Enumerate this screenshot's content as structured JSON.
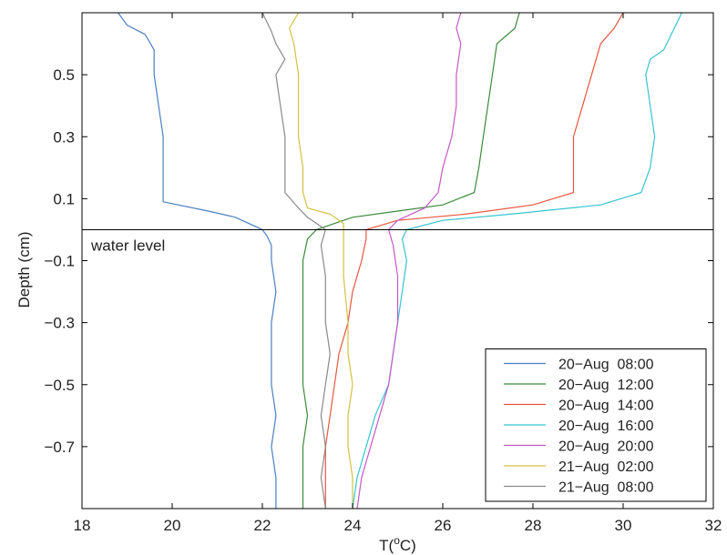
{
  "chart_data": {
    "type": "line",
    "xlabel_main": "T(",
    "xlabel_sup": "o",
    "xlabel_end": "C)",
    "ylabel": "Depth (cm)",
    "xlim": [
      18,
      32
    ],
    "ylim": [
      -0.9,
      0.7
    ],
    "xticks": [
      18,
      20,
      22,
      24,
      26,
      28,
      30,
      32
    ],
    "yticks": [
      0.5,
      0.3,
      0.1,
      -0.1,
      -0.3,
      -0.5,
      -0.7
    ],
    "ytick_labels": [
      "0.5",
      "0.3",
      "0.1",
      "−0.1",
      "−0.3",
      "−0.5",
      "−0.7"
    ],
    "xtick_labels": [
      "18",
      "20",
      "22",
      "24",
      "26",
      "28",
      "30",
      "32"
    ],
    "reference_line": {
      "y": 0,
      "label": "water level"
    },
    "legend": {
      "position": "bottom-right"
    },
    "series": [
      {
        "name": "20−Aug  08:00",
        "color": "#4a7fc1",
        "points": [
          [
            18.8,
            0.7
          ],
          [
            19.0,
            0.66
          ],
          [
            19.4,
            0.63
          ],
          [
            19.6,
            0.58
          ],
          [
            19.6,
            0.5
          ],
          [
            19.7,
            0.4
          ],
          [
            19.8,
            0.3
          ],
          [
            19.8,
            0.2
          ],
          [
            19.8,
            0.12
          ],
          [
            19.8,
            0.09
          ],
          [
            20.8,
            0.06
          ],
          [
            21.4,
            0.04
          ],
          [
            22.0,
            0.0
          ],
          [
            22.1,
            -0.02
          ],
          [
            22.2,
            -0.05
          ],
          [
            22.2,
            -0.1
          ],
          [
            22.3,
            -0.2
          ],
          [
            22.2,
            -0.3
          ],
          [
            22.2,
            -0.4
          ],
          [
            22.2,
            -0.5
          ],
          [
            22.3,
            -0.6
          ],
          [
            22.2,
            -0.7
          ],
          [
            22.3,
            -0.8
          ],
          [
            22.3,
            -0.9
          ]
        ]
      },
      {
        "name": "20−Aug  12:00",
        "color": "#3a8a3a",
        "points": [
          [
            27.7,
            0.7
          ],
          [
            27.6,
            0.65
          ],
          [
            27.2,
            0.6
          ],
          [
            27.1,
            0.5
          ],
          [
            27.0,
            0.4
          ],
          [
            26.9,
            0.3
          ],
          [
            26.8,
            0.2
          ],
          [
            26.7,
            0.12
          ],
          [
            26.0,
            0.08
          ],
          [
            25.0,
            0.06
          ],
          [
            24.0,
            0.04
          ],
          [
            23.2,
            0.0
          ],
          [
            23.0,
            -0.03
          ],
          [
            22.9,
            -0.1
          ],
          [
            22.9,
            -0.2
          ],
          [
            22.9,
            -0.3
          ],
          [
            22.9,
            -0.4
          ],
          [
            22.9,
            -0.5
          ],
          [
            23.0,
            -0.6
          ],
          [
            22.9,
            -0.7
          ],
          [
            22.9,
            -0.8
          ],
          [
            22.9,
            -0.9
          ]
        ]
      },
      {
        "name": "20−Aug  14:00",
        "color": "#e8553e",
        "points": [
          [
            30.0,
            0.7
          ],
          [
            29.8,
            0.65
          ],
          [
            29.5,
            0.6
          ],
          [
            29.3,
            0.5
          ],
          [
            29.1,
            0.4
          ],
          [
            28.9,
            0.3
          ],
          [
            28.9,
            0.2
          ],
          [
            28.9,
            0.12
          ],
          [
            28.0,
            0.08
          ],
          [
            26.5,
            0.05
          ],
          [
            25.0,
            0.03
          ],
          [
            24.3,
            0.0
          ],
          [
            24.3,
            -0.03
          ],
          [
            24.2,
            -0.1
          ],
          [
            24.0,
            -0.2
          ],
          [
            23.9,
            -0.3
          ],
          [
            23.7,
            -0.4
          ],
          [
            23.6,
            -0.5
          ],
          [
            23.5,
            -0.6
          ],
          [
            23.4,
            -0.7
          ],
          [
            23.4,
            -0.8
          ],
          [
            23.4,
            -0.9
          ]
        ]
      },
      {
        "name": "20−Aug  16:00",
        "color": "#35c4d0",
        "points": [
          [
            31.3,
            0.7
          ],
          [
            31.1,
            0.64
          ],
          [
            30.9,
            0.58
          ],
          [
            30.6,
            0.55
          ],
          [
            30.5,
            0.5
          ],
          [
            30.6,
            0.4
          ],
          [
            30.7,
            0.3
          ],
          [
            30.6,
            0.2
          ],
          [
            30.4,
            0.12
          ],
          [
            29.5,
            0.08
          ],
          [
            27.5,
            0.05
          ],
          [
            26.0,
            0.03
          ],
          [
            25.2,
            0.0
          ],
          [
            25.1,
            -0.03
          ],
          [
            25.2,
            -0.1
          ],
          [
            25.1,
            -0.2
          ],
          [
            25.0,
            -0.3
          ],
          [
            24.9,
            -0.4
          ],
          [
            24.8,
            -0.5
          ],
          [
            24.5,
            -0.6
          ],
          [
            24.3,
            -0.7
          ],
          [
            24.1,
            -0.8
          ],
          [
            24.0,
            -0.9
          ]
        ]
      },
      {
        "name": "20−Aug  20:00",
        "color": "#c458c8",
        "points": [
          [
            26.4,
            0.7
          ],
          [
            26.3,
            0.65
          ],
          [
            26.4,
            0.6
          ],
          [
            26.3,
            0.5
          ],
          [
            26.3,
            0.4
          ],
          [
            26.2,
            0.3
          ],
          [
            26.0,
            0.2
          ],
          [
            25.9,
            0.12
          ],
          [
            25.6,
            0.07
          ],
          [
            25.0,
            0.03
          ],
          [
            24.8,
            0.0
          ],
          [
            24.9,
            -0.05
          ],
          [
            25.0,
            -0.15
          ],
          [
            25.0,
            -0.3
          ],
          [
            24.9,
            -0.4
          ],
          [
            24.8,
            -0.5
          ],
          [
            24.6,
            -0.6
          ],
          [
            24.4,
            -0.7
          ],
          [
            24.2,
            -0.8
          ],
          [
            24.1,
            -0.9
          ]
        ]
      },
      {
        "name": "21−Aug  02:00",
        "color": "#d4c040",
        "points": [
          [
            22.8,
            0.7
          ],
          [
            22.6,
            0.65
          ],
          [
            22.7,
            0.6
          ],
          [
            22.8,
            0.5
          ],
          [
            22.8,
            0.4
          ],
          [
            22.8,
            0.3
          ],
          [
            22.9,
            0.2
          ],
          [
            22.9,
            0.12
          ],
          [
            23.0,
            0.07
          ],
          [
            23.5,
            0.05
          ],
          [
            23.8,
            0.02
          ],
          [
            23.8,
            0.0
          ],
          [
            23.8,
            -0.05
          ],
          [
            23.8,
            -0.15
          ],
          [
            23.9,
            -0.3
          ],
          [
            23.9,
            -0.4
          ],
          [
            24.0,
            -0.5
          ],
          [
            23.9,
            -0.6
          ],
          [
            23.9,
            -0.7
          ],
          [
            24.0,
            -0.8
          ],
          [
            24.0,
            -0.9
          ]
        ]
      },
      {
        "name": "21−Aug  08:00",
        "color": "#8a8a8a",
        "points": [
          [
            22.0,
            0.7
          ],
          [
            22.2,
            0.64
          ],
          [
            22.3,
            0.6
          ],
          [
            22.5,
            0.55
          ],
          [
            22.3,
            0.5
          ],
          [
            22.4,
            0.4
          ],
          [
            22.5,
            0.3
          ],
          [
            22.5,
            0.2
          ],
          [
            22.5,
            0.12
          ],
          [
            22.8,
            0.07
          ],
          [
            23.0,
            0.04
          ],
          [
            23.4,
            0.0
          ],
          [
            23.3,
            -0.05
          ],
          [
            23.4,
            -0.15
          ],
          [
            23.4,
            -0.3
          ],
          [
            23.5,
            -0.4
          ],
          [
            23.4,
            -0.5
          ],
          [
            23.3,
            -0.6
          ],
          [
            23.4,
            -0.7
          ],
          [
            23.3,
            -0.8
          ],
          [
            23.4,
            -0.9
          ]
        ]
      }
    ]
  }
}
